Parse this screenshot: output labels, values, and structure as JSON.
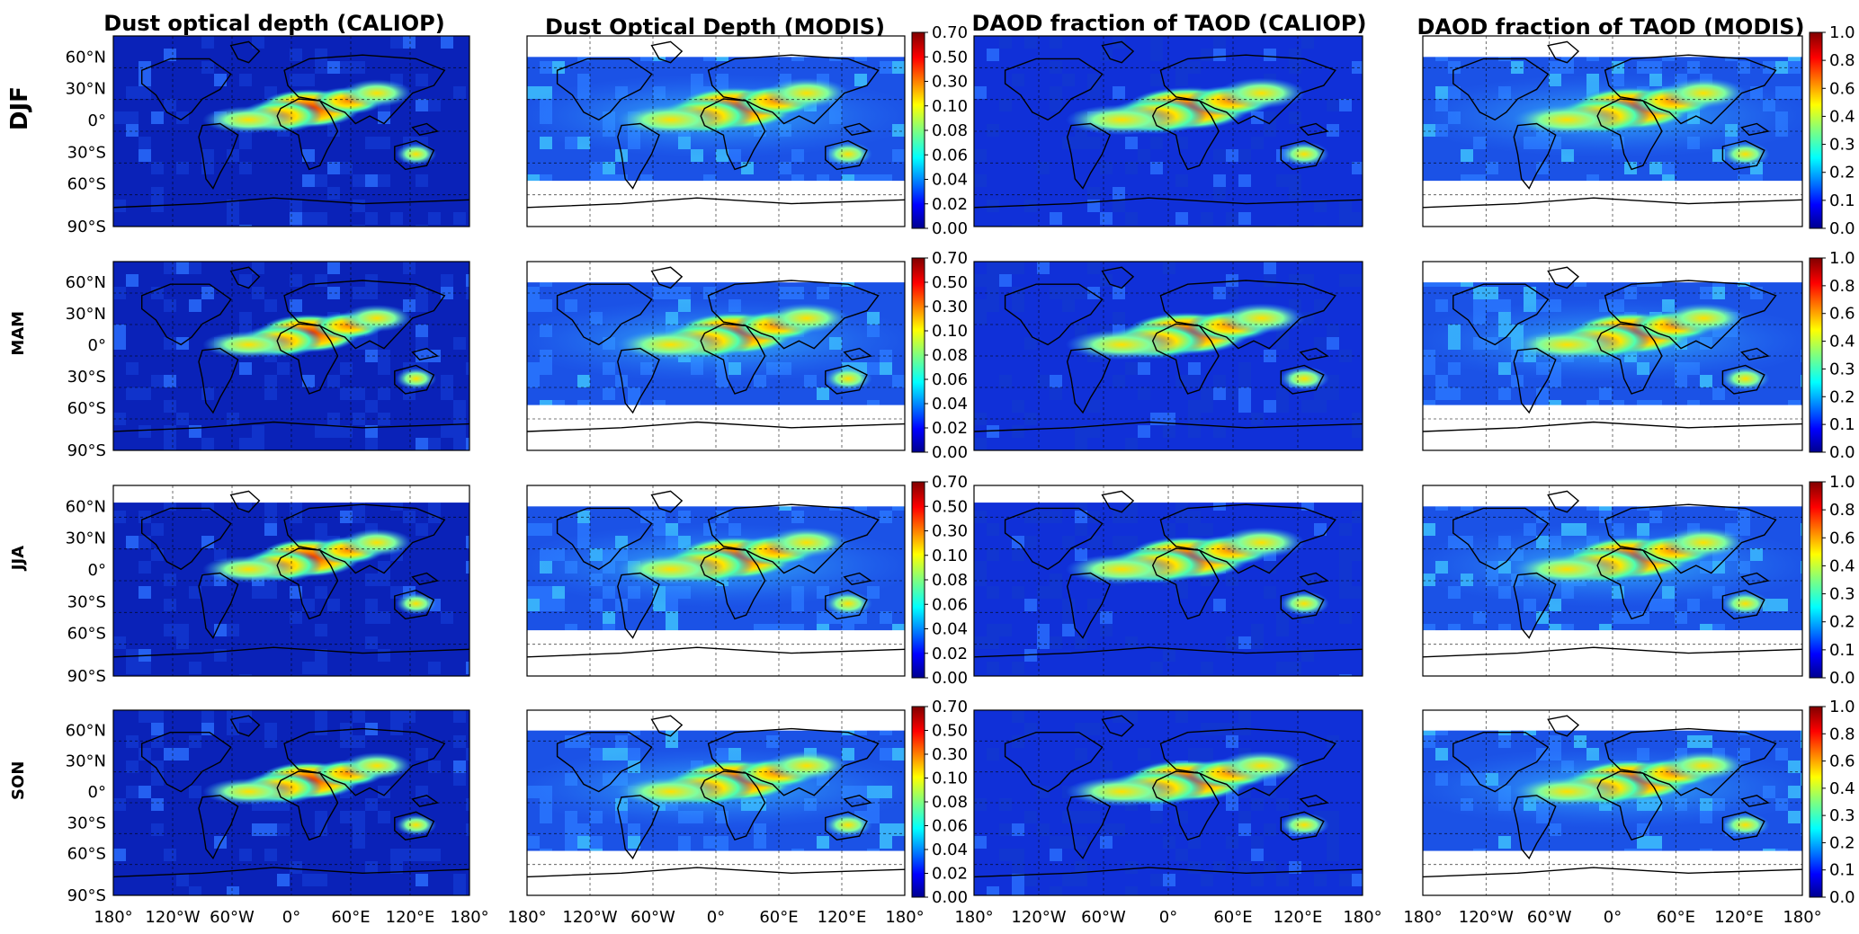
{
  "column_titles": [
    "Dust optical depth (CALIOP)",
    "Dust Optical Depth (MODIS)",
    "DAOD fraction of TAOD (CALIOP)",
    "DAOD fraction of TAOD (MODIS)"
  ],
  "row_labels": [
    "DJF",
    "MAM",
    "JJA",
    "SON"
  ],
  "lat_ticks": [
    "60°N",
    "30°N",
    "0°",
    "30°S",
    "60°S",
    "90°S"
  ],
  "lon_ticks": [
    "180°",
    "120°W",
    "60°W",
    "0°",
    "60°E",
    "120°E",
    "180°"
  ],
  "colorbars": {
    "dod": [
      "0.00",
      "0.02",
      "0.04",
      "0.06",
      "0.08",
      "0.10",
      "0.30",
      "0.50",
      "0.70"
    ],
    "fraction": [
      "0.0",
      "0.1",
      "0.2",
      "0.3",
      "0.4",
      "0.6",
      "0.8",
      "1.0"
    ]
  },
  "colors": {
    "background_field": "#0a2fc8",
    "low": "#00008f",
    "mid": "#1fd7ff",
    "high_yellow": "#ffd600",
    "high_red": "#c00000",
    "coastline": "#000000",
    "gridline": "#000000"
  },
  "legend": {
    "colormap": "jet",
    "missing_data": "white"
  }
}
